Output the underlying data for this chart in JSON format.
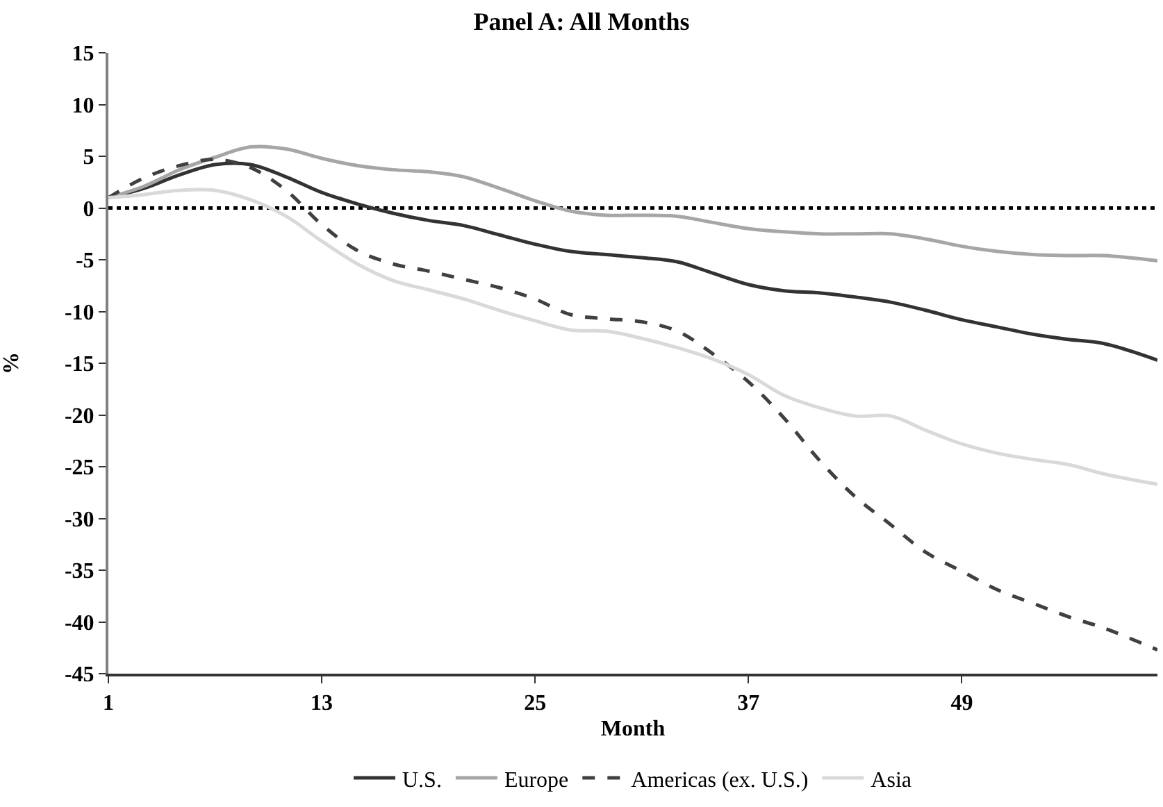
{
  "chart_data": {
    "type": "line",
    "title": "Panel A: All Months",
    "xlabel": "Month",
    "ylabel": "%",
    "x": [
      1,
      3,
      5,
      7,
      9,
      11,
      13,
      15,
      17,
      19,
      21,
      23,
      25,
      27,
      29,
      31,
      33,
      35,
      37,
      39,
      41,
      43,
      45,
      47,
      49,
      51,
      53,
      55,
      57,
      60
    ],
    "series": [
      {
        "name": "U.S.",
        "color": "#333333",
        "line_style": "solid",
        "values": [
          1.0,
          1.9,
          3.2,
          4.2,
          4.2,
          3.0,
          1.5,
          0.4,
          -0.5,
          -1.2,
          -1.7,
          -2.6,
          -3.5,
          -4.2,
          -4.5,
          -4.8,
          -5.2,
          -6.3,
          -7.4,
          -8.0,
          -8.2,
          -8.6,
          -9.1,
          -9.9,
          -10.8,
          -11.5,
          -12.2,
          -12.7,
          -13.1,
          -14.7
        ]
      },
      {
        "name": "Europe",
        "color": "#a6a6a6",
        "line_style": "solid",
        "values": [
          1.0,
          2.1,
          3.7,
          4.9,
          5.9,
          5.7,
          4.8,
          4.1,
          3.7,
          3.5,
          3.0,
          1.9,
          0.7,
          -0.3,
          -0.7,
          -0.7,
          -0.8,
          -1.4,
          -2.0,
          -2.3,
          -2.5,
          -2.5,
          -2.5,
          -3.0,
          -3.7,
          -4.2,
          -4.5,
          -4.6,
          -4.6,
          -5.1
        ]
      },
      {
        "name": "Americas (ex. U.S.)",
        "color": "#404040",
        "line_style": "dashed",
        "values": [
          1.0,
          2.9,
          4.1,
          4.7,
          3.9,
          1.7,
          -1.6,
          -4.1,
          -5.4,
          -6.1,
          -6.9,
          -7.7,
          -8.8,
          -10.3,
          -10.7,
          -11.0,
          -11.9,
          -14.1,
          -16.8,
          -20.3,
          -24.4,
          -27.9,
          -30.6,
          -33.3,
          -35.1,
          -36.9,
          -38.2,
          -39.5,
          -40.6,
          -42.7
        ]
      },
      {
        "name": "Asia",
        "color": "#d9d9d9",
        "line_style": "solid",
        "values": [
          1.0,
          1.3,
          1.7,
          1.7,
          0.8,
          -0.8,
          -3.2,
          -5.4,
          -7.0,
          -7.9,
          -8.8,
          -9.9,
          -10.9,
          -11.8,
          -11.9,
          -12.6,
          -13.5,
          -14.6,
          -16.1,
          -18.1,
          -19.3,
          -20.1,
          -20.1,
          -21.5,
          -22.8,
          -23.7,
          -24.3,
          -24.8,
          -25.7,
          -26.7
        ]
      }
    ],
    "ref_lines": [
      {
        "axis": "y",
        "value": 0,
        "color": "#000000",
        "line_style": "dotted"
      }
    ],
    "xlim": [
      1,
      60
    ],
    "xticks": [
      1,
      13,
      25,
      37,
      49
    ],
    "ylim": [
      -45,
      15
    ],
    "yticks": [
      15,
      10,
      5,
      0,
      -5,
      -10,
      -15,
      -20,
      -25,
      -30,
      -35,
      -40,
      -45
    ],
    "grid": false,
    "legend": "bottom",
    "marker": "none"
  }
}
